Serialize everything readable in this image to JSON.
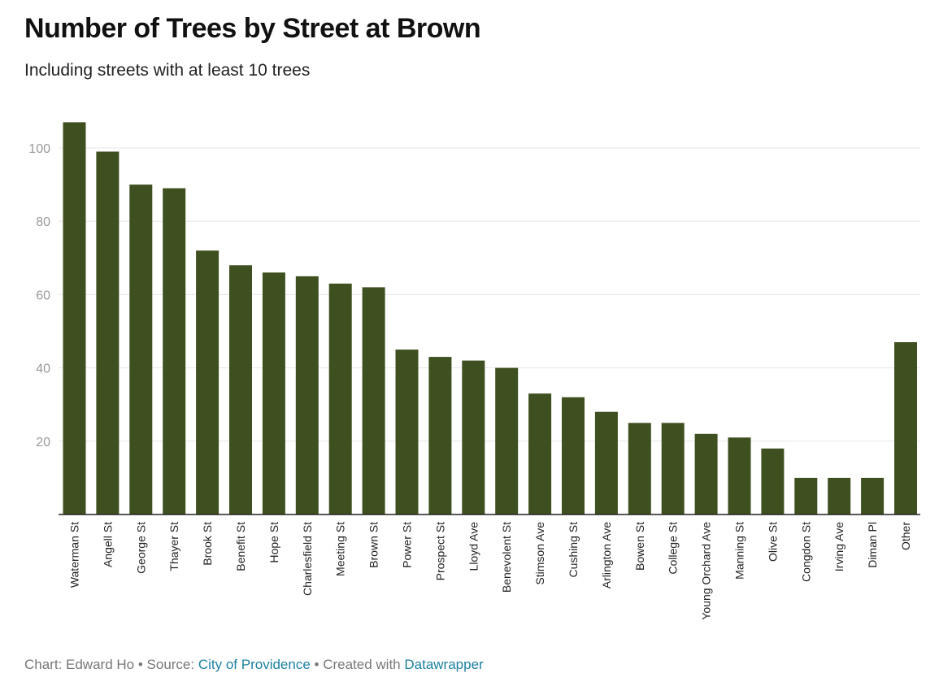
{
  "header": {
    "title": "Number of Trees by Street at Brown",
    "subtitle": "Including streets with at least 10 trees"
  },
  "footer": {
    "chart_prefix": "Chart: Edward Ho",
    "separator1": " • Source: ",
    "source": "City of Providence",
    "separator2": " • Created with ",
    "tool": "Datawrapper"
  },
  "colors": {
    "bar": "#3f5020",
    "grid": "#e6e6e6",
    "axis": "#222222",
    "link": "#1d81a2"
  },
  "chart_data": {
    "type": "bar",
    "title": "Number of Trees by Street at Brown",
    "subtitle": "Including streets with at least 10 trees",
    "xlabel": "",
    "ylabel": "",
    "ylim": [
      0,
      110
    ],
    "yticks": [
      20,
      40,
      60,
      80,
      100
    ],
    "grid": true,
    "categories": [
      "Waterman St",
      "Angell St",
      "George St",
      "Thayer St",
      "Brook St",
      "Benefit St",
      "Hope St",
      "Charlesfield St",
      "Meeting St",
      "Brown St",
      "Power St",
      "Prospect St",
      "Lloyd Ave",
      "Benevolent St",
      "Stimson Ave",
      "Cushing St",
      "Arlington Ave",
      "Bowen St",
      "College St",
      "Young Orchard Ave",
      "Manning St",
      "Olive St",
      "Congdon St",
      "Irving Ave",
      "Diman Pl",
      "Other"
    ],
    "values": [
      107,
      99,
      90,
      89,
      72,
      68,
      66,
      65,
      63,
      62,
      45,
      43,
      42,
      40,
      33,
      32,
      28,
      25,
      25,
      22,
      21,
      18,
      10,
      10,
      10,
      47
    ]
  }
}
